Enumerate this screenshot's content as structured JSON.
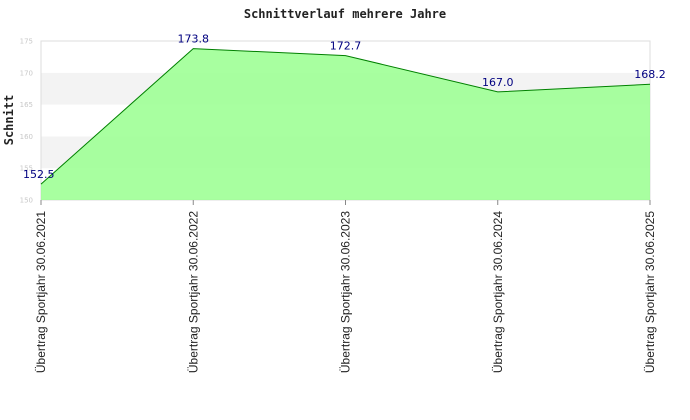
{
  "chart_data": {
    "type": "area",
    "title": "Schnittverlauf mehrere Jahre",
    "xlabel": "",
    "ylabel": "Schnitt",
    "categories": [
      "Übertrag Sportjahr 30.06.2021",
      "Übertrag Sportjahr 30.06.2022",
      "Übertrag Sportjahr 30.06.2023",
      "Übertrag Sportjahr 30.06.2024",
      "Übertrag Sportjahr 30.06.2025"
    ],
    "values": [
      152.5,
      173.8,
      172.7,
      167.0,
      168.2
    ],
    "data_labels": [
      "152.5",
      "173.8",
      "172.7",
      "167.0",
      "168.2"
    ],
    "yticks": [
      "150",
      "155",
      "160",
      "165",
      "170",
      "175"
    ],
    "ylim": [
      150,
      175
    ],
    "grid": "horizontal bands",
    "legend": "none",
    "colors": {
      "fill": "#99ff8f",
      "line": "#008000",
      "band": "#f3f3f3",
      "data_label": "#000080",
      "tick_label": "#c8c8c8"
    }
  }
}
